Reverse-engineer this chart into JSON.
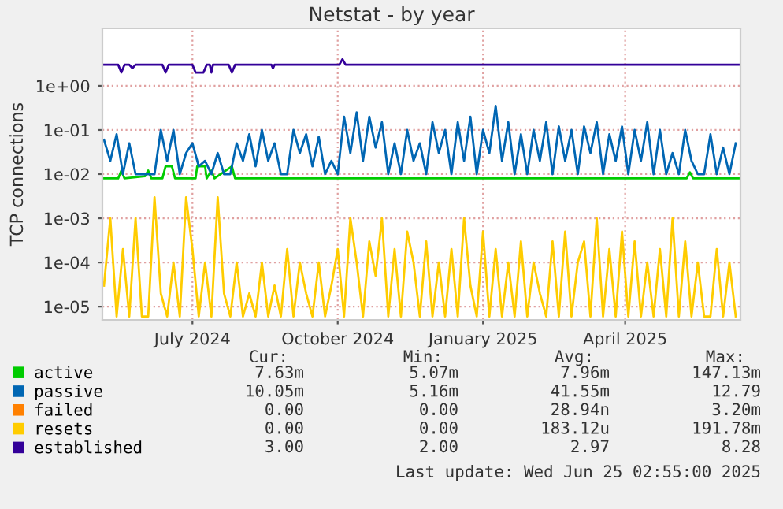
{
  "chart_data": {
    "type": "line",
    "title": "Netstat - by year",
    "ylabel": "TCP connections",
    "log": "y",
    "grid": true,
    "legend": "bottom",
    "xlim": [
      "2024-05-05",
      "2025-06-13"
    ],
    "ylim": [
      5e-06,
      20
    ],
    "xticks": [
      {
        "value": "2024-07-01",
        "label": "July 2024"
      },
      {
        "value": "2024-10-01",
        "label": "October 2024"
      },
      {
        "value": "2025-01-01",
        "label": "January 2025"
      },
      {
        "value": "2025-04-01",
        "label": "April 2025"
      }
    ],
    "yticks": [
      {
        "value": 1e-05,
        "label": "1e-05"
      },
      {
        "value": 0.0001,
        "label": "1e-04"
      },
      {
        "value": 0.001,
        "label": "1e-03"
      },
      {
        "value": 0.01,
        "label": "1e-02"
      },
      {
        "value": 0.1,
        "label": "1e-01"
      },
      {
        "value": 1,
        "label": "1e+00"
      }
    ],
    "x": [
      "2024-05-06",
      "2024-05-10",
      "2024-05-14",
      "2024-05-18",
      "2024-05-22",
      "2024-05-26",
      "2024-05-30",
      "2024-06-03",
      "2024-06-07",
      "2024-06-11",
      "2024-06-15",
      "2024-06-19",
      "2024-06-23",
      "2024-06-27",
      "2024-07-01",
      "2024-07-05",
      "2024-07-09",
      "2024-07-13",
      "2024-07-17",
      "2024-07-21",
      "2024-07-25",
      "2024-07-29",
      "2024-08-02",
      "2024-08-06",
      "2024-08-10",
      "2024-08-14",
      "2024-08-18",
      "2024-08-22",
      "2024-08-26",
      "2024-08-30",
      "2024-09-03",
      "2024-09-07",
      "2024-09-11",
      "2024-09-15",
      "2024-09-19",
      "2024-09-23",
      "2024-09-27",
      "2024-10-01",
      "2024-10-05",
      "2024-10-09",
      "2024-10-13",
      "2024-10-17",
      "2024-10-21",
      "2024-10-25",
      "2024-10-29",
      "2024-11-02",
      "2024-11-06",
      "2024-11-10",
      "2024-11-14",
      "2024-11-18",
      "2024-11-22",
      "2024-11-26",
      "2024-11-30",
      "2024-12-04",
      "2024-12-08",
      "2024-12-12",
      "2024-12-16",
      "2024-12-20",
      "2024-12-24",
      "2024-12-28",
      "2025-01-01",
      "2025-01-05",
      "2025-01-09",
      "2025-01-13",
      "2025-01-17",
      "2025-01-21",
      "2025-01-25",
      "2025-01-29",
      "2025-02-02",
      "2025-02-06",
      "2025-02-10",
      "2025-02-14",
      "2025-02-18",
      "2025-02-22",
      "2025-02-26",
      "2025-03-02",
      "2025-03-06",
      "2025-03-10",
      "2025-03-14",
      "2025-03-18",
      "2025-03-22",
      "2025-03-26",
      "2025-03-30",
      "2025-04-03",
      "2025-04-07",
      "2025-04-11",
      "2025-04-15",
      "2025-04-19",
      "2025-04-23",
      "2025-04-27",
      "2025-05-01",
      "2025-05-05",
      "2025-05-09",
      "2025-05-13",
      "2025-05-17",
      "2025-05-21",
      "2025-05-25",
      "2025-05-29",
      "2025-06-02",
      "2025-06-06",
      "2025-06-10"
    ],
    "series": [
      {
        "name": "active",
        "color": "#00cc00",
        "x": [
          "2024-05-05",
          "2024-05-15",
          "2024-05-17",
          "2024-05-19",
          "2024-06-01",
          "2024-06-03",
          "2024-06-05",
          "2024-06-12",
          "2024-06-14",
          "2024-06-18",
          "2024-06-20",
          "2024-07-03",
          "2024-07-04",
          "2024-07-09",
          "2024-07-10",
          "2024-07-13",
          "2024-07-15",
          "2024-07-26",
          "2024-07-28",
          "2024-09-01",
          "2024-11-01",
          "2025-01-01",
          "2025-03-01",
          "2025-05-10",
          "2025-05-12",
          "2025-05-14",
          "2025-06-12"
        ],
        "values": [
          0.008,
          0.008,
          0.012,
          0.008,
          0.009,
          0.012,
          0.008,
          0.008,
          0.015,
          0.015,
          0.008,
          0.008,
          0.015,
          0.015,
          0.008,
          0.012,
          0.008,
          0.015,
          0.008,
          0.008,
          0.008,
          0.008,
          0.008,
          0.008,
          0.011,
          0.008,
          0.008
        ]
      },
      {
        "name": "passive",
        "color": "#0066b3",
        "values": [
          0.06,
          0.02,
          0.08,
          0.01,
          0.05,
          0.01,
          0.01,
          0.01,
          0.01,
          0.1,
          0.02,
          0.1,
          0.01,
          0.03,
          0.05,
          0.015,
          0.02,
          0.01,
          0.03,
          0.01,
          0.01,
          0.05,
          0.02,
          0.08,
          0.015,
          0.1,
          0.02,
          0.05,
          0.01,
          0.01,
          0.1,
          0.03,
          0.08,
          0.015,
          0.07,
          0.01,
          0.02,
          0.01,
          0.2,
          0.03,
          0.25,
          0.02,
          0.2,
          0.04,
          0.15,
          0.01,
          0.05,
          0.01,
          0.1,
          0.02,
          0.05,
          0.01,
          0.15,
          0.03,
          0.1,
          0.01,
          0.15,
          0.02,
          0.2,
          0.01,
          0.1,
          0.03,
          0.35,
          0.02,
          0.15,
          0.01,
          0.08,
          0.01,
          0.1,
          0.02,
          0.15,
          0.01,
          0.12,
          0.02,
          0.1,
          0.01,
          0.12,
          0.03,
          0.15,
          0.01,
          0.08,
          0.02,
          0.12,
          0.01,
          0.1,
          0.02,
          0.15,
          0.01,
          0.1,
          0.01,
          0.03,
          0.01,
          0.1,
          0.02,
          0.01,
          0.01,
          0.08,
          0.01,
          0.04,
          0.01,
          0.05
        ]
      },
      {
        "name": "failed",
        "color": "#ff8000",
        "values": [
          null,
          null,
          null,
          null,
          null,
          null,
          null,
          null,
          null,
          null,
          null,
          null,
          null,
          null,
          null,
          null,
          null,
          null,
          null,
          null,
          null,
          null,
          null,
          null,
          null,
          null,
          null,
          null,
          null,
          null,
          null,
          null,
          null,
          null,
          null,
          null,
          null,
          null,
          null,
          null,
          null,
          null,
          null,
          null,
          null,
          null,
          null,
          null,
          null,
          null,
          null,
          null,
          null,
          null,
          null,
          null,
          null,
          null,
          null,
          null,
          null,
          null,
          null,
          null,
          null,
          null,
          null,
          null,
          null,
          null,
          null,
          null,
          null,
          null,
          null,
          null,
          null,
          null,
          null,
          null,
          null,
          null,
          null,
          null,
          null,
          null,
          null,
          null,
          null,
          null,
          null,
          null,
          null,
          null,
          null,
          null,
          null,
          null,
          null,
          null,
          null
        ]
      },
      {
        "name": "resets",
        "color": "#ffcc00",
        "values": [
          3e-05,
          0.001,
          6e-06,
          0.0002,
          6e-06,
          0.001,
          6e-06,
          6e-06,
          0.003,
          2e-05,
          6e-06,
          0.0001,
          6e-06,
          0.003,
          0.0002,
          6e-06,
          0.0001,
          6e-06,
          0.003,
          2e-05,
          6e-06,
          0.0001,
          6e-06,
          2e-05,
          6e-06,
          0.0001,
          6e-06,
          3e-05,
          6e-06,
          0.0002,
          6e-06,
          0.0001,
          2e-05,
          6e-06,
          0.0001,
          6e-06,
          3e-05,
          0.0002,
          6e-06,
          0.001,
          0.0001,
          6e-06,
          0.0003,
          5e-05,
          0.001,
          6e-06,
          0.0002,
          6e-06,
          0.0005,
          0.0001,
          6e-06,
          0.0003,
          6e-06,
          0.0001,
          6e-06,
          0.0002,
          6e-06,
          0.001,
          3e-05,
          6e-06,
          0.0005,
          6e-06,
          0.0002,
          6e-06,
          0.0001,
          6e-06,
          0.0003,
          6e-06,
          0.0001,
          2e-05,
          6e-06,
          0.0003,
          6e-06,
          0.0005,
          6e-06,
          0.0001,
          0.0003,
          6e-06,
          0.001,
          6e-06,
          0.0002,
          6e-06,
          0.0005,
          6e-06,
          0.0003,
          6e-06,
          0.0001,
          6e-06,
          0.0002,
          6e-06,
          0.001,
          6e-06,
          0.0003,
          6e-06,
          0.0001,
          6e-06,
          6e-06,
          0.0002,
          6e-06,
          0.0001,
          6e-06
        ]
      },
      {
        "name": "established",
        "color": "#330099",
        "x": [
          "2024-05-05",
          "2024-05-15",
          "2024-05-17",
          "2024-05-19",
          "2024-05-22",
          "2024-05-24",
          "2024-05-26",
          "2024-06-12",
          "2024-06-14",
          "2024-06-16",
          "2024-07-01",
          "2024-07-03",
          "2024-07-08",
          "2024-07-10",
          "2024-07-12",
          "2024-07-13",
          "2024-07-14",
          "2024-07-24",
          "2024-07-26",
          "2024-07-28",
          "2024-08-20",
          "2024-08-21",
          "2024-08-22",
          "2024-10-02",
          "2024-10-04",
          "2024-10-06",
          "2025-06-12"
        ],
        "values": [
          3,
          3,
          2,
          3,
          3,
          2.5,
          3,
          3,
          2,
          3,
          3,
          2,
          2,
          3,
          3,
          2,
          3,
          3,
          2,
          3,
          3,
          2.5,
          3,
          3,
          4,
          3,
          3
        ]
      }
    ],
    "annotations": [
      "Cur:",
      "Min:",
      "Avg:",
      "Max:",
      "7.63m",
      "5.07m",
      "7.96m",
      "147.13m",
      "10.05m",
      "5.16m",
      "41.55m",
      "12.79",
      "0.00",
      "0.00",
      "28.94n",
      "3.20m",
      "0.00",
      "0.00",
      "183.12u",
      "191.78m",
      "3.00",
      "2.00",
      "2.97",
      "8.28",
      "Last update: Wed Jun 25 02:55:00 2025"
    ]
  }
}
